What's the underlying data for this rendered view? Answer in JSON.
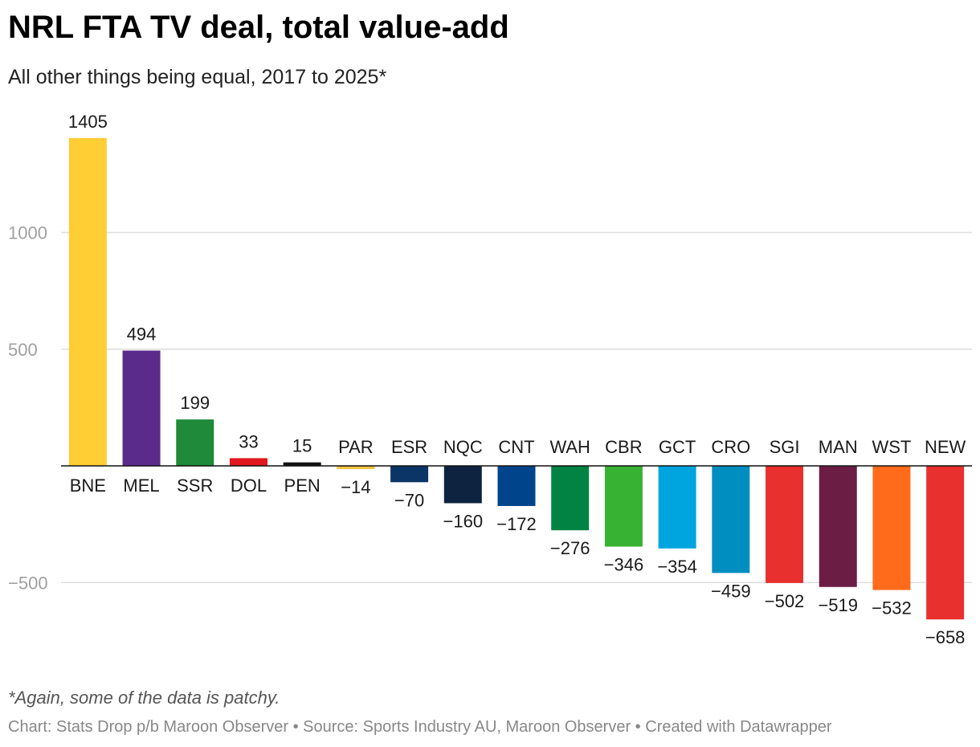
{
  "chart_data": {
    "type": "bar",
    "title": "NRL FTA TV deal, total value-add",
    "subtitle": "All other things being equal, 2017 to 2025*",
    "categories": [
      "BNE",
      "MEL",
      "SSR",
      "DOL",
      "PEN",
      "PAR",
      "ESR",
      "NQC",
      "CNT",
      "WAH",
      "CBR",
      "GCT",
      "CRO",
      "SGI",
      "MAN",
      "WST",
      "NEW"
    ],
    "values": [
      1405,
      494,
      199,
      33,
      15,
      -14,
      -70,
      -160,
      -172,
      -276,
      -346,
      -354,
      -459,
      -502,
      -519,
      -532,
      -658
    ],
    "value_labels": [
      "1405",
      "494",
      "199",
      "33",
      "15",
      "−14",
      "−70",
      "−160",
      "−172",
      "−276",
      "−346",
      "−354",
      "−459",
      "−502",
      "−519",
      "−532",
      "−658"
    ],
    "colors": [
      "#ffcd34",
      "#5b2b8c",
      "#1e8a3a",
      "#e1171e",
      "#111111",
      "#f5c342",
      "#0b3566",
      "#0d2340",
      "#00458c",
      "#008343",
      "#38b233",
      "#00a5e0",
      "#008ec0",
      "#e8302f",
      "#6b1d44",
      "#ff6b1a",
      "#e8302f"
    ],
    "y_ticks": [
      1000,
      500,
      -500
    ],
    "y_tick_labels": [
      "1000",
      "500",
      "−500"
    ],
    "ylim": [
      -720,
      1470
    ],
    "xlabel": "",
    "ylabel": "",
    "grid": true
  },
  "footer": {
    "note": "*Again, some of the data is patchy.",
    "credit_chart": "Chart: Stats Drop p/b Maroon Observer",
    "separator": " • ",
    "credit_source": "Source: Sports Industry AU, Maroon Observer",
    "credit_tool": "Created with Datawrapper"
  }
}
